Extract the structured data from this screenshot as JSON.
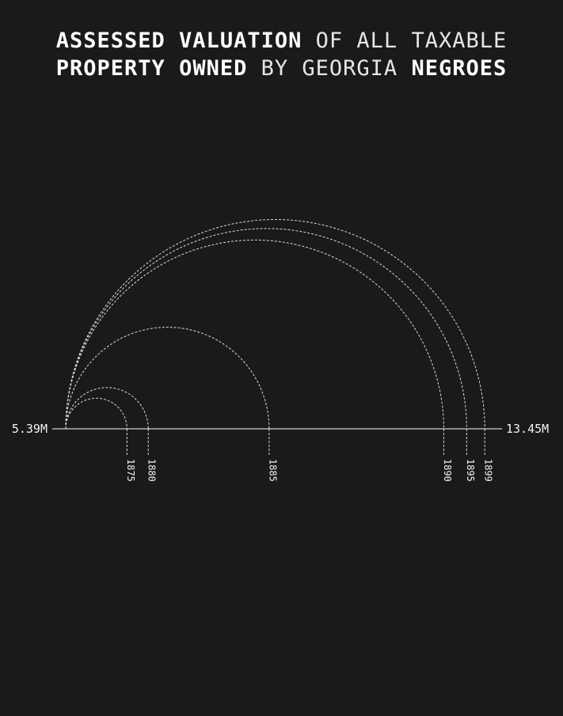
{
  "title": {
    "line1": [
      {
        "text": "ASSESSED",
        "bold": true
      },
      {
        "text": "VALUATION",
        "bold": true
      },
      {
        "text": "OF",
        "bold": false
      },
      {
        "text": "ALL",
        "bold": false
      },
      {
        "text": "TAXABLE",
        "bold": false
      }
    ],
    "line2": [
      {
        "text": "PROPERTY",
        "bold": true
      },
      {
        "text": "OWNED",
        "bold": true
      },
      {
        "text": "BY",
        "bold": false
      },
      {
        "text": "GEORGIA",
        "bold": false
      },
      {
        "text": "NEGROES",
        "bold": true
      }
    ]
  },
  "chart_data": {
    "type": "arc",
    "x_min_label": "5.39M",
    "x_max_label": "13.45M",
    "x_range": [
      5.39,
      13.45
    ],
    "x_unit": "M",
    "categories": [
      "1875",
      "1880",
      "1885",
      "1890",
      "1895",
      "1899"
    ],
    "values": [
      6.54,
      6.94,
      9.21,
      12.49,
      12.92,
      13.26
    ],
    "colors": {
      "background": "#1b1a1a",
      "arc_stroke": "#d9d9d9",
      "axis": "#ffffff",
      "text": "#f2f2f2"
    }
  }
}
